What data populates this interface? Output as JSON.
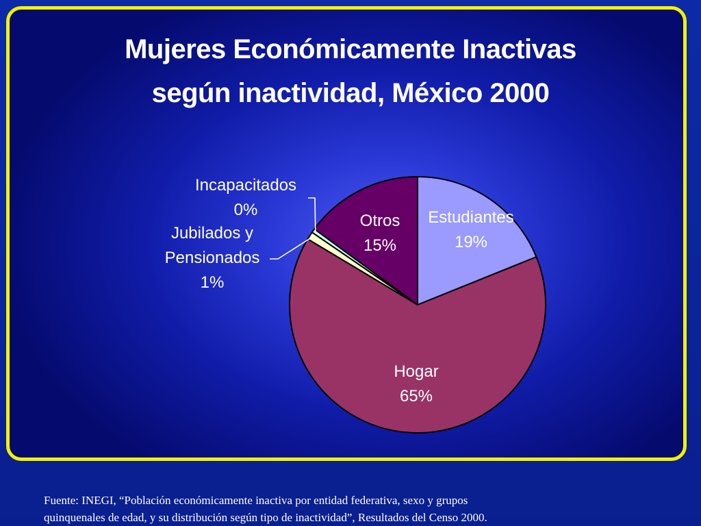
{
  "slide": {
    "title_line1": "Mujeres Económicamente Inactivas",
    "title_line2": "según inactividad, México 2000",
    "source_line1": "Fuente:  INEGI, “Población económicamente inactiva por entidad federativa, sexo y grupos",
    "source_line2": "quinquenales de edad, y su distribución según tipo de inactividad”, Resultados del Censo 2000."
  },
  "colors": {
    "frame_border": "#f2f200",
    "label_text": "#ffffff",
    "slice_outline": "#000000"
  },
  "chart_data": {
    "type": "pie",
    "title": "Mujeres Económicamente Inactivas según inactividad, México 2000",
    "slices": [
      {
        "label": "Estudiantes",
        "pct_label": "19%",
        "value": 19,
        "color": "#9a9aff"
      },
      {
        "label": "Hogar",
        "pct_label": "65%",
        "value": 65,
        "color": "#993366"
      },
      {
        "label": "Jubilados y Pensionados",
        "label_lines": [
          "Jubilados  y",
          "Pensionados"
        ],
        "pct_label": "1%",
        "value": 1,
        "color": "#ffffcc"
      },
      {
        "label": "Incapacitados",
        "pct_label": "0%",
        "value": 0.5,
        "color": "#ccffff"
      },
      {
        "label": "Otros",
        "pct_label": "15%",
        "value": 15,
        "color": "#660066"
      }
    ],
    "start_angle_deg": 0,
    "direction": "clockwise",
    "legend": "none"
  }
}
